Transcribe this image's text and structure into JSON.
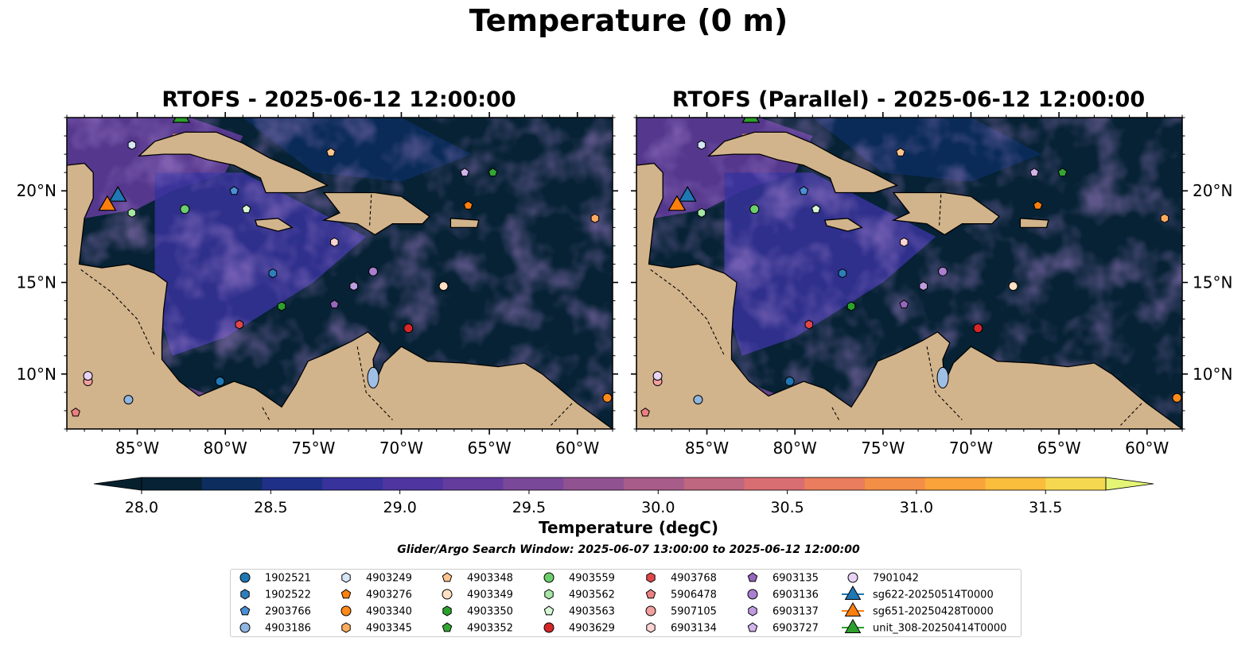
{
  "figure": {
    "title": "Temperature (0 m)",
    "search_window": "Glider/Argo Search Window: 2025-06-07 13:00:00 to 2025-06-12 12:00:00"
  },
  "chart_data": [
    {
      "type": "heatmap",
      "title": "RTOFS - 2025-06-12 12:00:00",
      "xlim": [
        -89,
        -58
      ],
      "ylim": [
        7,
        24
      ],
      "x_ticks": [
        "85°W",
        "80°W",
        "75°W",
        "70°W",
        "65°W",
        "60°W"
      ],
      "y_ticks": [
        "10°N",
        "15°N",
        "20°N"
      ],
      "y_tick_side": "left"
    },
    {
      "type": "heatmap",
      "title": "RTOFS (Parallel) - 2025-06-12 12:00:00",
      "xlim": [
        -89,
        -58
      ],
      "ylim": [
        7,
        24
      ],
      "x_ticks": [
        "85°W",
        "80°W",
        "75°W",
        "70°W",
        "65°W",
        "60°W"
      ],
      "y_ticks": [
        "10°N",
        "15°N",
        "20°N"
      ],
      "y_tick_side": "right"
    }
  ],
  "colorbar": {
    "label": "Temperature (degC)",
    "min": 28.0,
    "max": 31.5,
    "ticks": [
      "28.0",
      "28.5",
      "29.0",
      "29.5",
      "30.0",
      "30.5",
      "31.0",
      "31.5"
    ],
    "colors": [
      "#062234",
      "#0c2d5e",
      "#1f3088",
      "#37329c",
      "#4e35a0",
      "#643c9e",
      "#7a4898",
      "#915291",
      "#a75c89",
      "#bf6680",
      "#d86e72",
      "#e97d5e",
      "#f38e47",
      "#f9a33a",
      "#fbbd3c",
      "#f6d850"
    ],
    "extend_max_color": "#e4f576",
    "extend_min_color": "#06202e"
  },
  "floats": [
    {
      "id": "1902521",
      "lon": -80.3,
      "lat": 9.6,
      "marker": "circle",
      "color": "#1f77b4"
    },
    {
      "id": "1902522",
      "lon": -77.3,
      "lat": 15.5,
      "marker": "hexagon",
      "color": "#2e7ebc"
    },
    {
      "id": "2903766",
      "lon": -79.5,
      "lat": 20.0,
      "marker": "pentagon",
      "color": "#4b8fd6"
    },
    {
      "id": "4903186",
      "lon": -85.5,
      "lat": 8.6,
      "marker": "circle",
      "color": "#8fb6e0"
    },
    {
      "id": "4903249",
      "lon": -85.3,
      "lat": 22.5,
      "marker": "hexagon",
      "color": "#d6e6f7"
    },
    {
      "id": "4903276",
      "lon": -66.2,
      "lat": 19.2,
      "marker": "pentagon",
      "color": "#ff7f0e"
    },
    {
      "id": "4903340",
      "lon": -58.3,
      "lat": 8.7,
      "marker": "circle",
      "color": "#ff8a1a"
    },
    {
      "id": "4903345",
      "lon": -59.0,
      "lat": 18.5,
      "marker": "hexagon",
      "color": "#fdab5e"
    },
    {
      "id": "4903348",
      "lon": -74.0,
      "lat": 22.1,
      "marker": "pentagon",
      "color": "#ffc590"
    },
    {
      "id": "4903349",
      "lon": -67.6,
      "lat": 14.8,
      "marker": "circle",
      "color": "#ffe0c4"
    },
    {
      "id": "4903350",
      "lon": -76.8,
      "lat": 13.7,
      "marker": "hexagon",
      "color": "#2ca02c"
    },
    {
      "id": "4903352",
      "lon": -64.8,
      "lat": 21.0,
      "marker": "pentagon",
      "color": "#34a534"
    },
    {
      "id": "4903559",
      "lon": -82.3,
      "lat": 19.0,
      "marker": "circle",
      "color": "#6ccf6c"
    },
    {
      "id": "4903562",
      "lon": -85.3,
      "lat": 18.8,
      "marker": "hexagon",
      "color": "#a6e6a6"
    },
    {
      "id": "4903563",
      "lon": -78.8,
      "lat": 19.0,
      "marker": "pentagon",
      "color": "#d4f7d4"
    },
    {
      "id": "4903629",
      "lon": -69.6,
      "lat": 12.5,
      "marker": "circle",
      "color": "#d62728"
    },
    {
      "id": "4903768",
      "lon": -79.2,
      "lat": 12.7,
      "marker": "hexagon",
      "color": "#e0474a"
    },
    {
      "id": "5906478",
      "lon": -88.5,
      "lat": 7.9,
      "marker": "pentagon",
      "color": "#ec8080"
    },
    {
      "id": "5907105",
      "lon": -87.8,
      "lat": 9.6,
      "marker": "circle",
      "color": "#f4a0a0"
    },
    {
      "id": "6903134",
      "lon": -73.8,
      "lat": 17.2,
      "marker": "hexagon",
      "color": "#fcd3d3"
    },
    {
      "id": "6903135",
      "lon": -73.8,
      "lat": 13.8,
      "marker": "pentagon",
      "color": "#9467bd"
    },
    {
      "id": "6903136",
      "lon": -71.6,
      "lat": 15.6,
      "marker": "circle",
      "color": "#a97fd0"
    },
    {
      "id": "6903137",
      "lon": -72.7,
      "lat": 14.8,
      "marker": "hexagon",
      "color": "#bf9be0"
    },
    {
      "id": "6903727",
      "lon": -66.4,
      "lat": 21.0,
      "marker": "pentagon",
      "color": "#d2b4ec"
    },
    {
      "id": "7901042",
      "lon": -87.8,
      "lat": 9.9,
      "marker": "circle",
      "color": "#e8d3f5"
    },
    {
      "id": "sg622-20250514T0000",
      "lon": -86.1,
      "lat": 19.7,
      "marker": "triangle",
      "color": "#1f77b4"
    },
    {
      "id": "sg651-20250428T0000",
      "lon": -86.7,
      "lat": 19.2,
      "marker": "triangle",
      "color": "#ff7f0e"
    },
    {
      "id": "unit_308-20250414T0000",
      "lon": -82.5,
      "lat": 24.0,
      "marker": "triangle",
      "color": "#2ca02c"
    }
  ]
}
